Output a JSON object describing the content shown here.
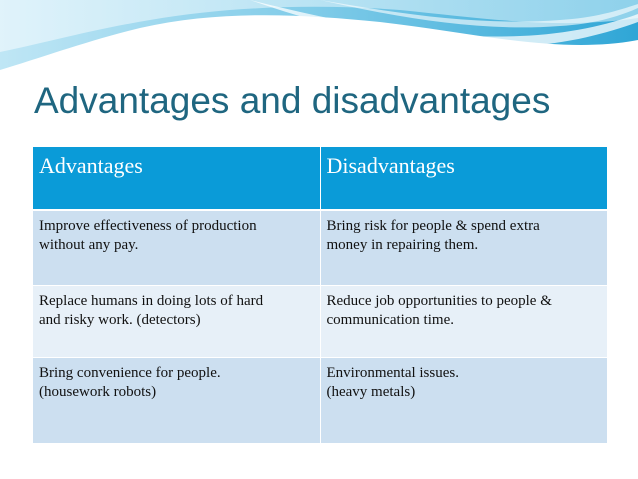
{
  "slide": {
    "title": "Advantages and disadvantages"
  },
  "table": {
    "headers": [
      "Advantages",
      "Disadvantages"
    ],
    "rows": [
      [
        "Improve effectiveness of production\nwithout any pay.",
        "Bring risk for people & spend extra\nmoney in repairing them."
      ],
      [
        "Replace humans in doing lots of hard\nand risky work. (detectors)",
        "Reduce job opportunities to people &\ncommunication time."
      ],
      [
        "Bring convenience for people.\n(housework robots)",
        "Environmental issues.\n(heavy metals)"
      ]
    ]
  },
  "colors": {
    "title": "#1f6680",
    "header_bg": "#0a9bd8",
    "row_dark": "#ccdff0",
    "row_light": "#e7f0f8"
  }
}
